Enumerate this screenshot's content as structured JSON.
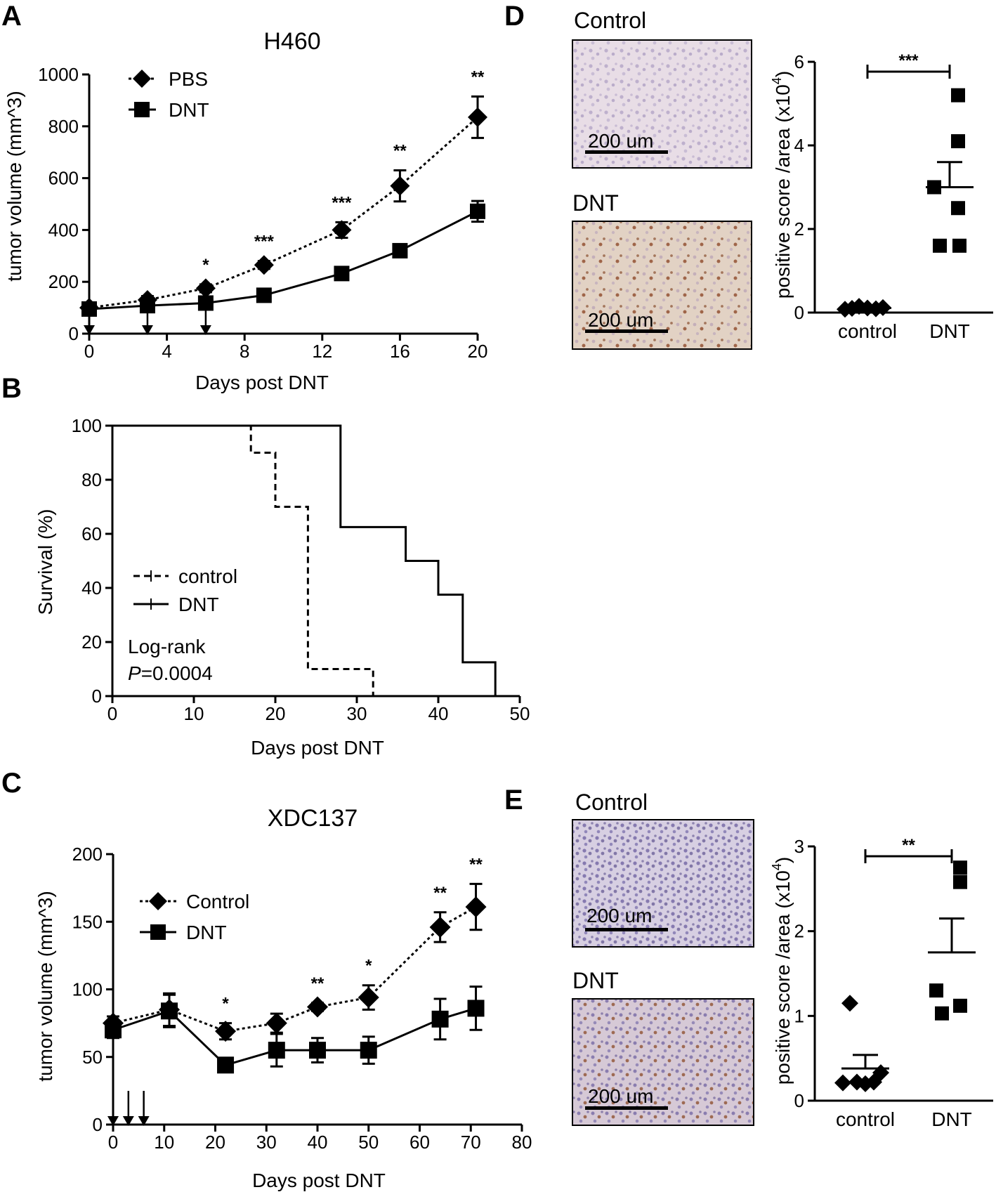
{
  "panels": {
    "A": "A",
    "B": "B",
    "C": "C",
    "D": "D",
    "E": "E"
  },
  "chart_data": [
    {
      "id": "A",
      "type": "line",
      "title": "H460",
      "xlabel": "Days post DNT",
      "ylabel": "tumor volume (mm^3)",
      "xlim": [
        0,
        20
      ],
      "ylim": [
        0,
        1000
      ],
      "xticks": [
        0,
        4,
        8,
        12,
        16,
        20
      ],
      "yticks": [
        0,
        200,
        400,
        600,
        800,
        1000
      ],
      "series": [
        {
          "name": "PBS",
          "marker": "diamond",
          "dash": "dotted",
          "x": [
            0,
            3,
            6,
            9,
            13,
            16,
            20
          ],
          "y": [
            100,
            130,
            175,
            265,
            400,
            570,
            835
          ],
          "err": [
            15,
            15,
            15,
            15,
            30,
            60,
            80
          ]
        },
        {
          "name": "DNT",
          "marker": "square",
          "dash": "solid",
          "x": [
            0,
            3,
            6,
            9,
            13,
            16,
            20
          ],
          "y": [
            95,
            108,
            118,
            148,
            232,
            320,
            472
          ],
          "err": [
            10,
            10,
            15,
            10,
            10,
            15,
            40
          ]
        }
      ],
      "treatment_days": [
        0,
        3,
        6
      ],
      "significance": [
        {
          "x": 6,
          "label": "*"
        },
        {
          "x": 9,
          "label": "***"
        },
        {
          "x": 13,
          "label": "***"
        },
        {
          "x": 16,
          "label": "**"
        },
        {
          "x": 20,
          "label": "**"
        }
      ]
    },
    {
      "id": "B",
      "type": "line",
      "title": "",
      "xlabel": "Days post DNT",
      "ylabel": "Survival (%)",
      "xlim": [
        0,
        50
      ],
      "ylim": [
        0,
        100
      ],
      "xticks": [
        0,
        10,
        20,
        30,
        40,
        50
      ],
      "yticks": [
        0,
        20,
        40,
        60,
        80,
        100
      ],
      "series": [
        {
          "name": "control",
          "dash": "dashed",
          "step": true,
          "x": [
            0,
            17,
            17,
            20,
            20,
            24,
            24,
            32,
            32
          ],
          "y": [
            100,
            100,
            90,
            90,
            70,
            70,
            10,
            10,
            0
          ]
        },
        {
          "name": "DNT",
          "dash": "solid",
          "step": true,
          "x": [
            0,
            28,
            28,
            36,
            36,
            40,
            40,
            43,
            43,
            47,
            47
          ],
          "y": [
            100,
            100,
            62.5,
            62.5,
            50,
            50,
            37.5,
            37.5,
            12.5,
            12.5,
            0
          ]
        }
      ],
      "annotation": {
        "line1": "Log-rank",
        "p_italic": "P",
        "p_value": "=0.0004"
      }
    },
    {
      "id": "C",
      "type": "line",
      "title": "XDC137",
      "xlabel": "Days post DNT",
      "ylabel": "tumor volume (mm^3)",
      "xlim": [
        0,
        80
      ],
      "ylim": [
        0,
        200
      ],
      "xticks": [
        0,
        10,
        20,
        30,
        40,
        50,
        60,
        70,
        80
      ],
      "yticks": [
        0,
        50,
        100,
        150,
        200
      ],
      "series": [
        {
          "name": "Control",
          "marker": "diamond",
          "dash": "dotted",
          "x": [
            0,
            11,
            22,
            32,
            40,
            50,
            64,
            71
          ],
          "y": [
            75,
            85,
            69,
            75,
            87,
            94,
            146,
            161
          ],
          "err": [
            5,
            12,
            6,
            7,
            3,
            9,
            11,
            17
          ]
        },
        {
          "name": "DNT",
          "marker": "square",
          "dash": "solid",
          "x": [
            0,
            11,
            22,
            32,
            40,
            50,
            64,
            71
          ],
          "y": [
            70,
            84,
            44,
            55,
            55,
            55,
            78,
            86
          ],
          "err": [
            6,
            12,
            4,
            12,
            9,
            10,
            15,
            16
          ]
        }
      ],
      "treatment_days": [
        0,
        3,
        6
      ],
      "significance": [
        {
          "x": 22,
          "label": "*"
        },
        {
          "x": 40,
          "label": "**"
        },
        {
          "x": 50,
          "label": "*"
        },
        {
          "x": 64,
          "label": "**"
        },
        {
          "x": 71,
          "label": "**"
        }
      ]
    },
    {
      "id": "D",
      "type": "scatter",
      "xlabel": "",
      "ylabel": "positive score /area (x10^4)",
      "ylabel_parts": {
        "main": "positive score /area (x10",
        "sup": "4",
        "close": ")"
      },
      "categories": [
        "control",
        "DNT"
      ],
      "ylim": [
        0,
        6
      ],
      "yticks": [
        0,
        2,
        4,
        6
      ],
      "groups": [
        {
          "name": "control",
          "marker": "diamond",
          "values": [
            0.1,
            0.12,
            0.15,
            0.08,
            0.11,
            0.09
          ],
          "mean": 0.11
        },
        {
          "name": "DNT",
          "marker": "square",
          "values": [
            5.2,
            4.1,
            3.0,
            2.5,
            1.6,
            1.6
          ],
          "mean": 3.0,
          "sem": 0.6
        }
      ],
      "significance": "***"
    },
    {
      "id": "E",
      "type": "scatter",
      "xlabel": "",
      "ylabel": "positive score /area (x10^4)",
      "ylabel_parts": {
        "main": "positive score /area (x10",
        "sup": "4",
        "close": ")"
      },
      "categories": [
        "control",
        "DNT"
      ],
      "ylim": [
        0,
        3
      ],
      "yticks": [
        0,
        1,
        2,
        3
      ],
      "groups": [
        {
          "name": "control",
          "marker": "diamond",
          "values": [
            1.15,
            0.33,
            0.22,
            0.21,
            0.2,
            0.22
          ],
          "mean": 0.38,
          "sem": 0.16
        },
        {
          "name": "DNT",
          "marker": "square",
          "values": [
            2.75,
            2.58,
            1.3,
            1.12,
            1.03
          ],
          "mean": 1.75,
          "sem": 0.4
        }
      ],
      "significance": "**"
    }
  ],
  "micrographs": {
    "D": {
      "top_label": "Control",
      "bottom_label": "DNT",
      "scale": "200 um"
    },
    "E": {
      "top_label": "Control",
      "bottom_label": "DNT",
      "scale": "200 um"
    }
  }
}
